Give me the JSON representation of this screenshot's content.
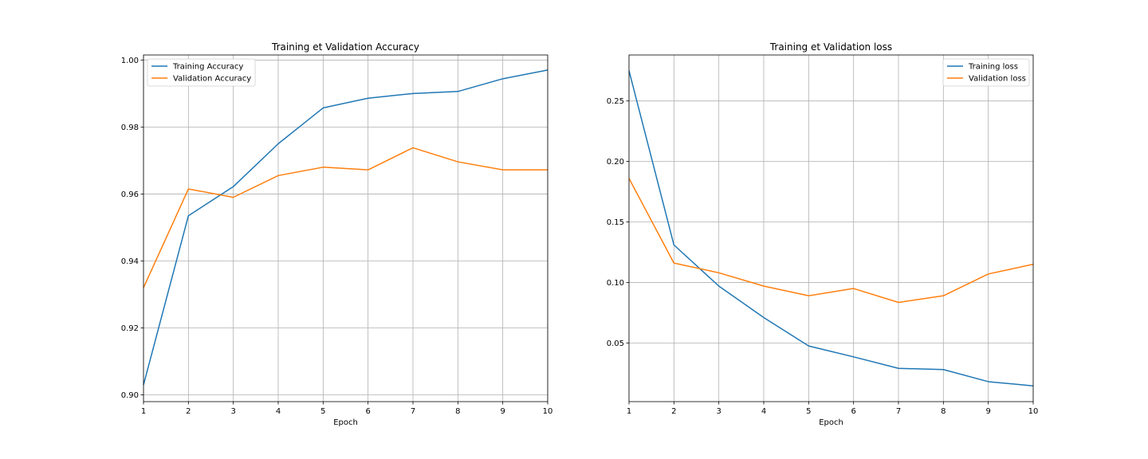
{
  "chart_data": [
    {
      "type": "line",
      "title": "Training et Validation Accuracy",
      "xlabel": "Epoch",
      "ylabel": "",
      "x": [
        1,
        2,
        3,
        4,
        5,
        6,
        7,
        8,
        9,
        10
      ],
      "xlim": [
        1,
        10
      ],
      "ylim": [
        0.898,
        1.0015
      ],
      "x_ticks": [
        "1",
        "2",
        "3",
        "4",
        "5",
        "6",
        "7",
        "8",
        "9",
        "10"
      ],
      "y_ticks": [
        "0.90",
        "0.92",
        "0.94",
        "0.96",
        "0.98",
        "1.00"
      ],
      "grid": true,
      "legend_position": "upper-left",
      "series": [
        {
          "name": "Training Accuracy",
          "color": "#1f77b4",
          "values": [
            0.903,
            0.9535,
            0.9622,
            0.975,
            0.9857,
            0.9886,
            0.99,
            0.9906,
            0.9944,
            0.997
          ]
        },
        {
          "name": "Validation Accuracy",
          "color": "#ff7f0e",
          "values": [
            0.932,
            0.9615,
            0.959,
            0.9655,
            0.968,
            0.9672,
            0.9738,
            0.9696,
            0.9672,
            0.9672
          ]
        }
      ]
    },
    {
      "type": "line",
      "title": "Training et Validation loss",
      "xlabel": "Epoch",
      "ylabel": "",
      "x": [
        1,
        2,
        3,
        4,
        5,
        6,
        7,
        8,
        9,
        10
      ],
      "xlim": [
        1,
        10
      ],
      "ylim": [
        0.0015,
        0.288
      ],
      "x_ticks": [
        "1",
        "2",
        "3",
        "4",
        "5",
        "6",
        "7",
        "8",
        "9",
        "10"
      ],
      "y_ticks": [
        "0.05",
        "0.10",
        "0.15",
        "0.20",
        "0.25"
      ],
      "grid": true,
      "legend_position": "upper-right",
      "series": [
        {
          "name": "Training loss",
          "color": "#1f77b4",
          "values": [
            0.275,
            0.131,
            0.097,
            0.071,
            0.0475,
            0.0385,
            0.029,
            0.028,
            0.018,
            0.0145
          ]
        },
        {
          "name": "Validation loss",
          "color": "#ff7f0e",
          "values": [
            0.186,
            0.116,
            0.108,
            0.097,
            0.089,
            0.095,
            0.0835,
            0.089,
            0.107,
            0.115
          ]
        }
      ]
    }
  ]
}
